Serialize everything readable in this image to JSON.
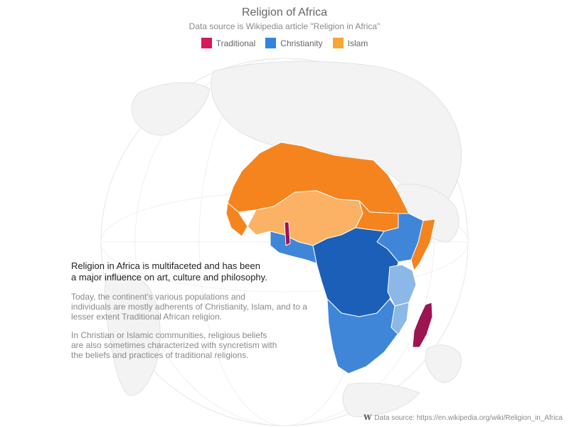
{
  "title": "Religion of Africa",
  "subtitle": "Data source is Wikipedia article \"Religion in Africa\"",
  "legend": {
    "items": [
      {
        "label": "Traditional",
        "color": "#d7185c"
      },
      {
        "label": "Christianity",
        "color": "#2f86e0"
      },
      {
        "label": "Islam",
        "color": "#f7a535"
      }
    ]
  },
  "description": {
    "lead_line1": "Religion in Africa is multifaceted and has been",
    "lead_line2": "a major influence on art, culture and philosophy.",
    "para1_line1": "Today, the continent's various populations and",
    "para1_line2": "individuals are mostly adherents of Christianity, Islam, and to a",
    "para1_line3": "lesser extent Traditional African religion.",
    "para2_line1": "In Christian or Islamic communities, religious beliefs",
    "para2_line2": "are also sometimes characterized with syncretism with",
    "para2_line3": "the beliefs and practices of traditional religions."
  },
  "credits": {
    "icon": "wikipedia-icon",
    "text": "Data source: https://en.wikipedia.org/wiki/Religion_in_Africa"
  },
  "colors": {
    "islam_dark": "#f5841f",
    "islam_light": "#fbb265",
    "christian_dark": "#1b5fb8",
    "christian_mid": "#3f86d8",
    "christian_light": "#8cb8e8",
    "traditional_dark": "#9c1450",
    "land": "#f3f3f3",
    "border": "#dddddd"
  }
}
